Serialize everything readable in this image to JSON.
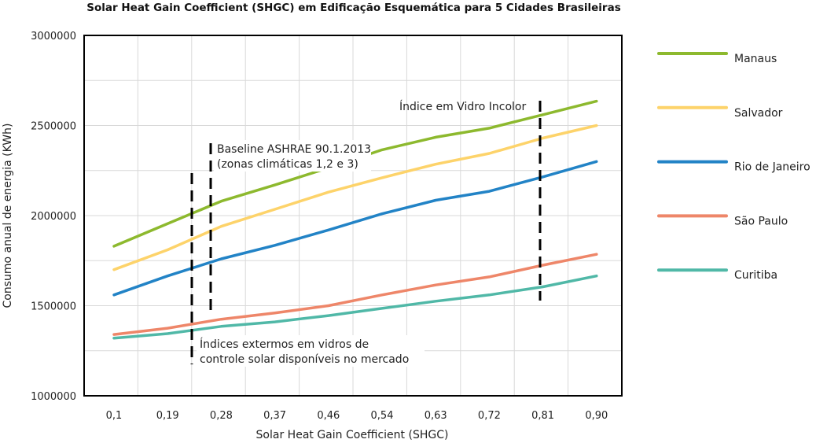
{
  "chart_data": {
    "type": "line",
    "title": "Solar Heat Gain Coefficient (SHGC) em Edificação Esquemática para 5 Cidades Brasileiras",
    "xlabel": "Solar Heat Gain Coefficient (SHGC)",
    "ylabel": "Consumo anual de energia (KWh)",
    "x": [
      "0,1",
      "0,19",
      "0,28",
      "0,37",
      "0,46",
      "0,54",
      "0,63",
      "0,72",
      "0,81",
      "0,90"
    ],
    "y_ticks": [
      "1000000",
      "1500000",
      "2000000",
      "2500000",
      "3000000"
    ],
    "ylim": [
      1000000,
      3000000
    ],
    "grid": true,
    "legend_position": "right",
    "series": [
      {
        "name": "Manaus",
        "color": "#8DB92E",
        "values": [
          1830000,
          1955000,
          2080000,
          2170000,
          2265000,
          2365000,
          2435000,
          2485000,
          2560000,
          2635000
        ]
      },
      {
        "name": "Salvador",
        "color": "#FDD36A",
        "values": [
          1700000,
          1810000,
          1940000,
          2035000,
          2130000,
          2210000,
          2285000,
          2345000,
          2430000,
          2500000
        ]
      },
      {
        "name": "Rio de Janeiro",
        "color": "#2283C6",
        "values": [
          1560000,
          1665000,
          1760000,
          1835000,
          1920000,
          2010000,
          2085000,
          2135000,
          2215000,
          2300000
        ]
      },
      {
        "name": "São Paulo",
        "color": "#EE8669",
        "values": [
          1340000,
          1375000,
          1425000,
          1460000,
          1500000,
          1560000,
          1615000,
          1660000,
          1725000,
          1785000
        ]
      },
      {
        "name": "Curitiba",
        "color": "#50B8A7",
        "values": [
          1320000,
          1345000,
          1385000,
          1410000,
          1445000,
          1485000,
          1525000,
          1560000,
          1605000,
          1665000
        ]
      }
    ],
    "annotations": [
      {
        "id": "baseline",
        "lines": [
          "Baseline ASHRAE 90.1.2013",
          "(zonas climáticas 1,2 e 3)"
        ]
      },
      {
        "id": "extremos",
        "lines": [
          "Índices extermos em vidros de",
          "controle solar disponíveis no mercado"
        ]
      },
      {
        "id": "incolor",
        "lines": [
          "Índice em Vidro Incolor"
        ]
      }
    ]
  }
}
